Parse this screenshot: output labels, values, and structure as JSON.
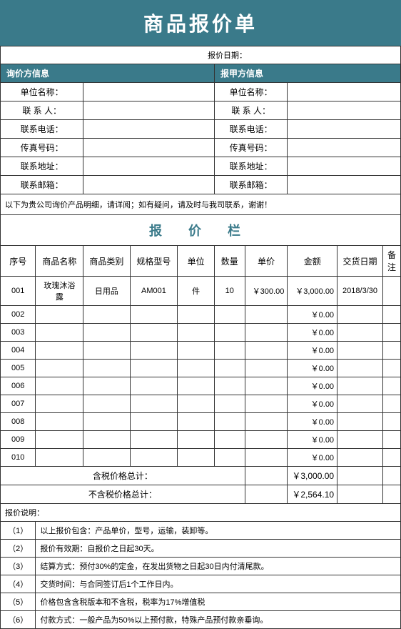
{
  "title": "商品报价单",
  "dateLabel": "报价日期：",
  "inquirer": {
    "header": "询价方信息",
    "fields": {
      "unit": "单位名称：",
      "contact": "联 系 人：",
      "phone": "联系电话：",
      "fax": "传真号码：",
      "address": "联系地址：",
      "email": "联系邮箱："
    }
  },
  "quoter": {
    "header": "报甲方信息",
    "fields": {
      "unit": "单位名称：",
      "contact": "联 系 人：",
      "phone": "联系电话：",
      "fax": "传真号码：",
      "address": "联系地址：",
      "email": "联系邮箱："
    }
  },
  "notice": "以下为贵公司询价产品明细，请详阅；如有疑问，请及时与我司联系，谢谢！",
  "quoteSection": "报   价   栏",
  "columns": {
    "seq": "序号",
    "name": "商品名称",
    "category": "商品类别",
    "spec": "规格型号",
    "unit": "单位",
    "qty": "数量",
    "price": "单价",
    "amount": "金额",
    "delivery": "交货日期",
    "remark": "备注"
  },
  "rows": [
    {
      "seq": "001",
      "name": "玫瑰沐浴露",
      "category": "日用品",
      "spec": "AM001",
      "unit": "件",
      "qty": "10",
      "price": "￥300.00",
      "amount": "￥3,000.00",
      "delivery": "2018/3/30",
      "remark": ""
    },
    {
      "seq": "002",
      "name": "",
      "category": "",
      "spec": "",
      "unit": "",
      "qty": "",
      "price": "",
      "amount": "￥0.00",
      "delivery": "",
      "remark": ""
    },
    {
      "seq": "003",
      "name": "",
      "category": "",
      "spec": "",
      "unit": "",
      "qty": "",
      "price": "",
      "amount": "￥0.00",
      "delivery": "",
      "remark": ""
    },
    {
      "seq": "004",
      "name": "",
      "category": "",
      "spec": "",
      "unit": "",
      "qty": "",
      "price": "",
      "amount": "￥0.00",
      "delivery": "",
      "remark": ""
    },
    {
      "seq": "005",
      "name": "",
      "category": "",
      "spec": "",
      "unit": "",
      "qty": "",
      "price": "",
      "amount": "￥0.00",
      "delivery": "",
      "remark": ""
    },
    {
      "seq": "006",
      "name": "",
      "category": "",
      "spec": "",
      "unit": "",
      "qty": "",
      "price": "",
      "amount": "￥0.00",
      "delivery": "",
      "remark": ""
    },
    {
      "seq": "007",
      "name": "",
      "category": "",
      "spec": "",
      "unit": "",
      "qty": "",
      "price": "",
      "amount": "￥0.00",
      "delivery": "",
      "remark": ""
    },
    {
      "seq": "008",
      "name": "",
      "category": "",
      "spec": "",
      "unit": "",
      "qty": "",
      "price": "",
      "amount": "￥0.00",
      "delivery": "",
      "remark": ""
    },
    {
      "seq": "009",
      "name": "",
      "category": "",
      "spec": "",
      "unit": "",
      "qty": "",
      "price": "",
      "amount": "￥0.00",
      "delivery": "",
      "remark": ""
    },
    {
      "seq": "010",
      "name": "",
      "category": "",
      "spec": "",
      "unit": "",
      "qty": "",
      "price": "",
      "amount": "￥0.00",
      "delivery": "",
      "remark": ""
    }
  ],
  "totals": {
    "taxLabel": "含税价格总计：",
    "taxValue": "￥3,000.00",
    "noTaxLabel": "不含税价格总计：",
    "noTaxValue": "￥2,564.10"
  },
  "descHeader": "报价说明：",
  "descriptions": [
    {
      "num": "（1）",
      "text": "以上报价包含：产品单价，型号，运输，装卸等。"
    },
    {
      "num": "（2）",
      "text": "报价有效期：自报价之日起30天。"
    },
    {
      "num": "（3）",
      "text": "结算方式：预付30%的定金，在发出货物之日起30日内付清尾款。"
    },
    {
      "num": "（4）",
      "text": "交货时间：与合同签订后1个工作日内。"
    },
    {
      "num": "（5）",
      "text": "价格包含含税版本和不含税，税率为17%增值税"
    },
    {
      "num": "（6）",
      "text": "付款方式：一般产品为50%以上预付款，特殊产品预付款亲垂询。"
    }
  ],
  "colors": {
    "primary": "#3a7a8a",
    "border": "#333333"
  }
}
